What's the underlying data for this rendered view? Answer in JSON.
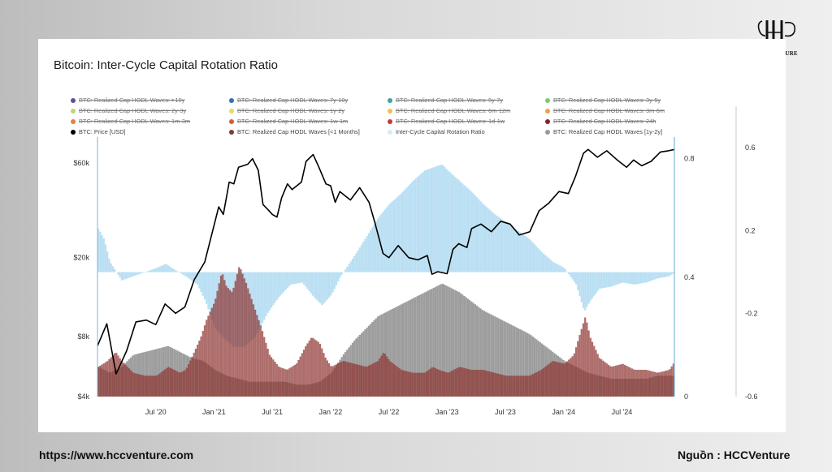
{
  "brand": {
    "name": "HCCVENTURE"
  },
  "footer": {
    "url": "https://www.hccventure.com",
    "source_label": "Nguồn",
    "source_sep": ":",
    "source_value": "HCCVenture"
  },
  "chart_data": {
    "type": "area",
    "title": "Bitcoin: Inter-Cycle Capital Rotation Ratio",
    "legend": [
      {
        "label": "BTC: Realized Cap HODL Waves: >10y",
        "color": "#5b4ea3",
        "visible": false
      },
      {
        "label": "BTC: Realized Cap HODL Waves: 7y-10y",
        "color": "#3a6fb0",
        "visible": false
      },
      {
        "label": "BTC: Realized Cap HODL Waves: 5y-7y",
        "color": "#3aa6a0",
        "visible": false
      },
      {
        "label": "BTC: Realized Cap HODL Waves: 3y-5y",
        "color": "#7cc77a",
        "visible": false
      },
      {
        "label": "BTC: Realized Cap HODL Waves: 2y-3y",
        "color": "#b6d77a",
        "visible": false
      },
      {
        "label": "BTC: Realized Cap HODL Waves: 1y-2y",
        "color": "#e3dd5b",
        "visible": false
      },
      {
        "label": "BTC: Realized Cap HODL Waves: 6m-12m",
        "color": "#f2c14f",
        "visible": false
      },
      {
        "label": "BTC: Realized Cap HODL Waves: 3m-6m",
        "color": "#f0a144",
        "visible": false
      },
      {
        "label": "BTC: Realized Cap HODL Waves: 1m-3m",
        "color": "#e8803e",
        "visible": false
      },
      {
        "label": "BTC: Realized Cap HODL Waves: 1w-1m",
        "color": "#d65c3a",
        "visible": false
      },
      {
        "label": "BTC: Realized Cap HODL Waves: 1d-1w",
        "color": "#c23a3a",
        "visible": false
      },
      {
        "label": "BTC: Realized Cap HODL Waves: 24h",
        "color": "#8a1f2a",
        "visible": false
      },
      {
        "label": "BTC: Price [USD]",
        "color": "#000000",
        "visible": true
      },
      {
        "label": "BTC: Realized Cap HODL Waves [<1 Months]",
        "color": "#7d3b39",
        "visible": true
      },
      {
        "label": "Inter-Cycle Capital Rotation Ratio",
        "color": "#d6ecf7",
        "visible": true
      },
      {
        "label": "BTC: Realized Cap HODL Waves [1y-2y]",
        "color": "#9a9a9a",
        "visible": true
      }
    ],
    "x_ticks": [
      "Jul '20",
      "Jan '21",
      "Jul '21",
      "Jan '22",
      "Jul '22",
      "Jan '23",
      "Jul '23",
      "Jan '24",
      "Jul '24"
    ],
    "x_tick_t": [
      2020.5,
      2021.0,
      2021.5,
      2022.0,
      2022.5,
      2023.0,
      2023.5,
      2024.0,
      2024.5
    ],
    "x_range": [
      2020.0,
      2024.95
    ],
    "left_axis": {
      "ticks": [
        "$60k",
        "$20k",
        "$8k",
        "$4k"
      ],
      "values": [
        60000,
        20000,
        8000,
        4000
      ],
      "scale": "log",
      "range": [
        4000,
        75000
      ]
    },
    "mid_axis": {
      "ticks": [
        "0.8",
        "0.4",
        "0"
      ],
      "values": [
        0.8,
        0.4,
        0
      ],
      "range": [
        0,
        0.85
      ]
    },
    "right_axis": {
      "ticks": [
        "0.6",
        "0.2",
        "-0.2",
        "-0.6"
      ],
      "values": [
        0.6,
        0.2,
        -0.2,
        -0.6
      ],
      "range": [
        -0.6,
        0.62
      ]
    },
    "series": [
      {
        "name": "BTC: Price [USD]",
        "axis": "left",
        "color": "#000000",
        "points": [
          [
            2020.0,
            7200
          ],
          [
            2020.08,
            9300
          ],
          [
            2020.16,
            5200
          ],
          [
            2020.25,
            6800
          ],
          [
            2020.33,
            9500
          ],
          [
            2020.42,
            9700
          ],
          [
            2020.5,
            9200
          ],
          [
            2020.58,
            11700
          ],
          [
            2020.67,
            10500
          ],
          [
            2020.75,
            11300
          ],
          [
            2020.83,
            15500
          ],
          [
            2020.92,
            19000
          ],
          [
            2021.0,
            29000
          ],
          [
            2021.04,
            36000
          ],
          [
            2021.08,
            33000
          ],
          [
            2021.13,
            48000
          ],
          [
            2021.17,
            47000
          ],
          [
            2021.21,
            57000
          ],
          [
            2021.29,
            59000
          ],
          [
            2021.33,
            63000
          ],
          [
            2021.38,
            55000
          ],
          [
            2021.42,
            37000
          ],
          [
            2021.46,
            35000
          ],
          [
            2021.5,
            33000
          ],
          [
            2021.54,
            32000
          ],
          [
            2021.58,
            40000
          ],
          [
            2021.63,
            47000
          ],
          [
            2021.67,
            44000
          ],
          [
            2021.75,
            48000
          ],
          [
            2021.79,
            61000
          ],
          [
            2021.85,
            66000
          ],
          [
            2021.9,
            57000
          ],
          [
            2021.96,
            47000
          ],
          [
            2022.0,
            46000
          ],
          [
            2022.04,
            38000
          ],
          [
            2022.08,
            43000
          ],
          [
            2022.17,
            39000
          ],
          [
            2022.25,
            45000
          ],
          [
            2022.33,
            38000
          ],
          [
            2022.38,
            30000
          ],
          [
            2022.45,
            21000
          ],
          [
            2022.5,
            20000
          ],
          [
            2022.58,
            23000
          ],
          [
            2022.67,
            20000
          ],
          [
            2022.75,
            19500
          ],
          [
            2022.83,
            20500
          ],
          [
            2022.87,
            16500
          ],
          [
            2022.92,
            17000
          ],
          [
            2023.0,
            16600
          ],
          [
            2023.05,
            22000
          ],
          [
            2023.1,
            23500
          ],
          [
            2023.17,
            22500
          ],
          [
            2023.21,
            28000
          ],
          [
            2023.29,
            29500
          ],
          [
            2023.38,
            27000
          ],
          [
            2023.46,
            30500
          ],
          [
            2023.54,
            29500
          ],
          [
            2023.62,
            26000
          ],
          [
            2023.71,
            27000
          ],
          [
            2023.79,
            34500
          ],
          [
            2023.87,
            37500
          ],
          [
            2023.96,
            43000
          ],
          [
            2024.04,
            42000
          ],
          [
            2024.1,
            51000
          ],
          [
            2024.17,
            67000
          ],
          [
            2024.21,
            70000
          ],
          [
            2024.29,
            64000
          ],
          [
            2024.37,
            69000
          ],
          [
            2024.46,
            62000
          ],
          [
            2024.54,
            57000
          ],
          [
            2024.6,
            62000
          ],
          [
            2024.67,
            58000
          ],
          [
            2024.75,
            61000
          ],
          [
            2024.83,
            68000
          ],
          [
            2024.9,
            69000
          ],
          [
            2024.95,
            70000
          ]
        ]
      },
      {
        "name": "Inter-Cycle Capital Rotation Ratio",
        "axis": "right",
        "color": "#9fcde8",
        "points": [
          [
            2020.0,
            0.21
          ],
          [
            2020.05,
            0.16
          ],
          [
            2020.1,
            0.05
          ],
          [
            2020.2,
            -0.04
          ],
          [
            2020.3,
            -0.02
          ],
          [
            2020.4,
            0.0
          ],
          [
            2020.5,
            0.02
          ],
          [
            2020.58,
            0.04
          ],
          [
            2020.66,
            0.01
          ],
          [
            2020.75,
            -0.02
          ],
          [
            2020.85,
            -0.06
          ],
          [
            2020.92,
            -0.14
          ],
          [
            2021.0,
            -0.27
          ],
          [
            2021.08,
            -0.32
          ],
          [
            2021.16,
            -0.36
          ],
          [
            2021.25,
            -0.36
          ],
          [
            2021.35,
            -0.31
          ],
          [
            2021.45,
            -0.2
          ],
          [
            2021.55,
            -0.12
          ],
          [
            2021.65,
            -0.06
          ],
          [
            2021.75,
            -0.05
          ],
          [
            2021.85,
            -0.12
          ],
          [
            2021.92,
            -0.16
          ],
          [
            2022.0,
            -0.11
          ],
          [
            2022.08,
            -0.02
          ],
          [
            2022.2,
            0.08
          ],
          [
            2022.3,
            0.17
          ],
          [
            2022.4,
            0.26
          ],
          [
            2022.5,
            0.33
          ],
          [
            2022.6,
            0.38
          ],
          [
            2022.7,
            0.44
          ],
          [
            2022.8,
            0.49
          ],
          [
            2022.9,
            0.51
          ],
          [
            2022.95,
            0.52
          ],
          [
            2023.0,
            0.49
          ],
          [
            2023.1,
            0.44
          ],
          [
            2023.2,
            0.39
          ],
          [
            2023.3,
            0.33
          ],
          [
            2023.4,
            0.28
          ],
          [
            2023.5,
            0.24
          ],
          [
            2023.6,
            0.2
          ],
          [
            2023.7,
            0.16
          ],
          [
            2023.8,
            0.1
          ],
          [
            2023.9,
            0.05
          ],
          [
            2024.0,
            0.02
          ],
          [
            2024.1,
            -0.06
          ],
          [
            2024.17,
            -0.19
          ],
          [
            2024.22,
            -0.14
          ],
          [
            2024.3,
            -0.08
          ],
          [
            2024.4,
            -0.07
          ],
          [
            2024.5,
            -0.05
          ],
          [
            2024.6,
            -0.06
          ],
          [
            2024.7,
            -0.05
          ],
          [
            2024.8,
            -0.03
          ],
          [
            2024.9,
            -0.02
          ],
          [
            2024.95,
            0.0
          ]
        ]
      },
      {
        "name": "BTC: Realized Cap HODL Waves [1y-2y]",
        "axis": "mid",
        "color": "#9a9a9a",
        "points": [
          [
            2020.0,
            0.1
          ],
          [
            2020.1,
            0.08
          ],
          [
            2020.2,
            0.1
          ],
          [
            2020.3,
            0.14
          ],
          [
            2020.4,
            0.15
          ],
          [
            2020.5,
            0.16
          ],
          [
            2020.6,
            0.17
          ],
          [
            2020.7,
            0.15
          ],
          [
            2020.8,
            0.13
          ],
          [
            2020.9,
            0.12
          ],
          [
            2021.0,
            0.09
          ],
          [
            2021.1,
            0.07
          ],
          [
            2021.2,
            0.06
          ],
          [
            2021.3,
            0.05
          ],
          [
            2021.4,
            0.05
          ],
          [
            2021.5,
            0.05
          ],
          [
            2021.6,
            0.05
          ],
          [
            2021.7,
            0.04
          ],
          [
            2021.8,
            0.04
          ],
          [
            2021.9,
            0.05
          ],
          [
            2022.0,
            0.08
          ],
          [
            2022.1,
            0.14
          ],
          [
            2022.2,
            0.19
          ],
          [
            2022.3,
            0.23
          ],
          [
            2022.4,
            0.27
          ],
          [
            2022.5,
            0.29
          ],
          [
            2022.6,
            0.31
          ],
          [
            2022.7,
            0.33
          ],
          [
            2022.8,
            0.35
          ],
          [
            2022.9,
            0.37
          ],
          [
            2022.95,
            0.38
          ],
          [
            2023.0,
            0.37
          ],
          [
            2023.1,
            0.35
          ],
          [
            2023.2,
            0.32
          ],
          [
            2023.3,
            0.29
          ],
          [
            2023.4,
            0.27
          ],
          [
            2023.5,
            0.25
          ],
          [
            2023.6,
            0.23
          ],
          [
            2023.7,
            0.21
          ],
          [
            2023.8,
            0.18
          ],
          [
            2023.9,
            0.15
          ],
          [
            2024.0,
            0.12
          ],
          [
            2024.1,
            0.1
          ],
          [
            2024.2,
            0.08
          ],
          [
            2024.3,
            0.07
          ],
          [
            2024.4,
            0.06
          ],
          [
            2024.5,
            0.06
          ],
          [
            2024.6,
            0.06
          ],
          [
            2024.7,
            0.06
          ],
          [
            2024.8,
            0.07
          ],
          [
            2024.9,
            0.07
          ],
          [
            2024.95,
            0.07
          ]
        ]
      },
      {
        "name": "BTC: Realized Cap HODL Waves [<1 Months]",
        "axis": "mid",
        "color": "#7d3b39",
        "points": [
          [
            2020.0,
            0.1
          ],
          [
            2020.08,
            0.12
          ],
          [
            2020.15,
            0.15
          ],
          [
            2020.2,
            0.12
          ],
          [
            2020.3,
            0.08
          ],
          [
            2020.4,
            0.07
          ],
          [
            2020.5,
            0.07
          ],
          [
            2020.6,
            0.1
          ],
          [
            2020.7,
            0.08
          ],
          [
            2020.75,
            0.09
          ],
          [
            2020.8,
            0.13
          ],
          [
            2020.88,
            0.2
          ],
          [
            2020.93,
            0.26
          ],
          [
            2021.0,
            0.32
          ],
          [
            2021.06,
            0.42
          ],
          [
            2021.1,
            0.37
          ],
          [
            2021.15,
            0.35
          ],
          [
            2021.21,
            0.44
          ],
          [
            2021.27,
            0.38
          ],
          [
            2021.33,
            0.31
          ],
          [
            2021.4,
            0.23
          ],
          [
            2021.47,
            0.14
          ],
          [
            2021.55,
            0.1
          ],
          [
            2021.62,
            0.09
          ],
          [
            2021.7,
            0.11
          ],
          [
            2021.78,
            0.17
          ],
          [
            2021.83,
            0.2
          ],
          [
            2021.9,
            0.18
          ],
          [
            2021.95,
            0.13
          ],
          [
            2022.0,
            0.1
          ],
          [
            2022.1,
            0.12
          ],
          [
            2022.2,
            0.11
          ],
          [
            2022.3,
            0.1
          ],
          [
            2022.4,
            0.12
          ],
          [
            2022.45,
            0.15
          ],
          [
            2022.5,
            0.12
          ],
          [
            2022.6,
            0.09
          ],
          [
            2022.7,
            0.08
          ],
          [
            2022.8,
            0.08
          ],
          [
            2022.87,
            0.1
          ],
          [
            2022.92,
            0.09
          ],
          [
            2023.0,
            0.08
          ],
          [
            2023.1,
            0.1
          ],
          [
            2023.2,
            0.09
          ],
          [
            2023.3,
            0.09
          ],
          [
            2023.4,
            0.08
          ],
          [
            2023.5,
            0.07
          ],
          [
            2023.6,
            0.07
          ],
          [
            2023.7,
            0.07
          ],
          [
            2023.8,
            0.09
          ],
          [
            2023.9,
            0.12
          ],
          [
            2024.0,
            0.11
          ],
          [
            2024.08,
            0.14
          ],
          [
            2024.14,
            0.22
          ],
          [
            2024.18,
            0.27
          ],
          [
            2024.22,
            0.2
          ],
          [
            2024.3,
            0.13
          ],
          [
            2024.4,
            0.1
          ],
          [
            2024.5,
            0.11
          ],
          [
            2024.6,
            0.09
          ],
          [
            2024.7,
            0.09
          ],
          [
            2024.8,
            0.08
          ],
          [
            2024.9,
            0.09
          ],
          [
            2024.95,
            0.12
          ]
        ]
      }
    ]
  }
}
